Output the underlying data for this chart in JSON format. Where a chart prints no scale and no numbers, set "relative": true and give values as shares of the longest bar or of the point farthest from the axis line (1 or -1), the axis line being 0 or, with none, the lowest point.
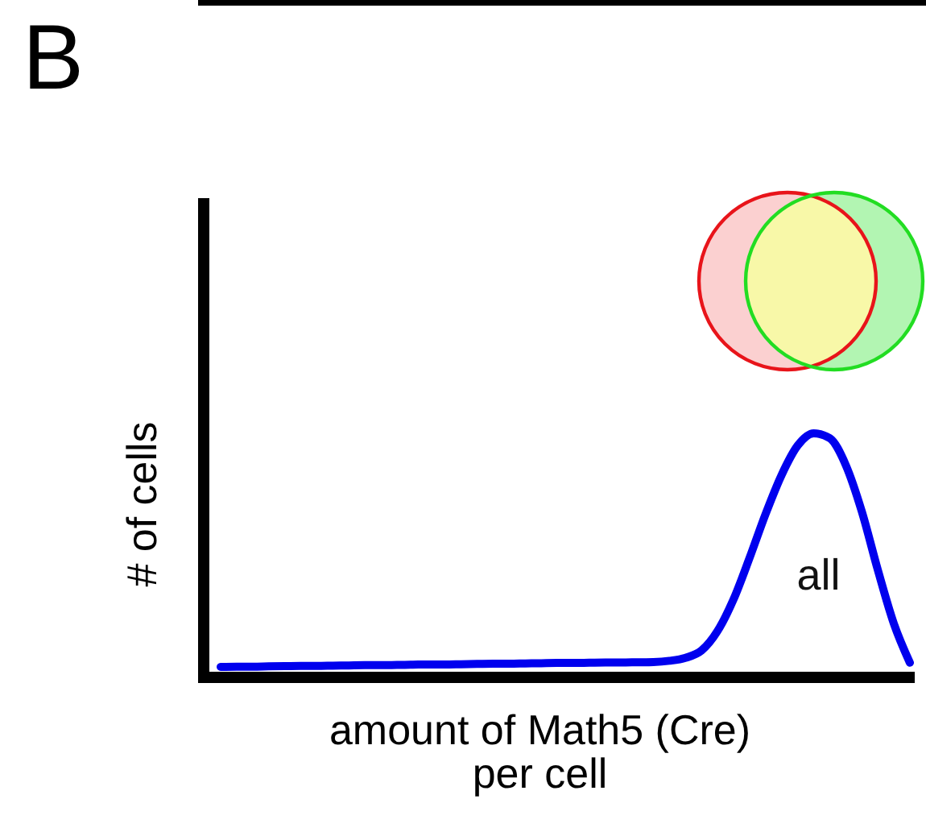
{
  "chart_data": {
    "type": "line",
    "title": "B",
    "xlabel": "amount of Math5 (Cre) per cell",
    "ylabel": "# of cells",
    "relative": true,
    "categories": [
      null,
      null,
      null,
      null,
      null,
      null,
      null,
      null,
      null,
      null,
      null,
      null,
      null,
      null,
      null,
      null,
      null,
      null,
      null,
      null,
      null,
      null,
      null,
      null,
      null,
      null,
      null,
      null,
      null,
      null,
      null,
      null,
      null,
      null,
      null,
      null,
      null,
      null,
      null,
      null,
      null,
      null,
      null,
      null
    ],
    "series": [
      {
        "name": "all",
        "color": "#0000ee",
        "values": [
          0.043,
          0.044,
          0.044,
          0.045,
          0.046,
          0.047,
          0.047,
          0.048,
          0.049,
          0.05,
          0.05,
          0.051,
          0.052,
          0.053,
          0.053,
          0.054,
          0.055,
          0.056,
          0.056,
          0.057,
          0.058,
          0.059,
          0.059,
          0.06,
          0.061,
          0.061,
          0.062,
          0.063,
          0.068,
          0.08,
          0.11,
          0.19,
          0.32,
          0.49,
          0.67,
          0.83,
          0.95,
          1,
          0.98,
          0.87,
          0.68,
          0.44,
          0.22,
          0.06
        ]
      }
    ]
  }
}
